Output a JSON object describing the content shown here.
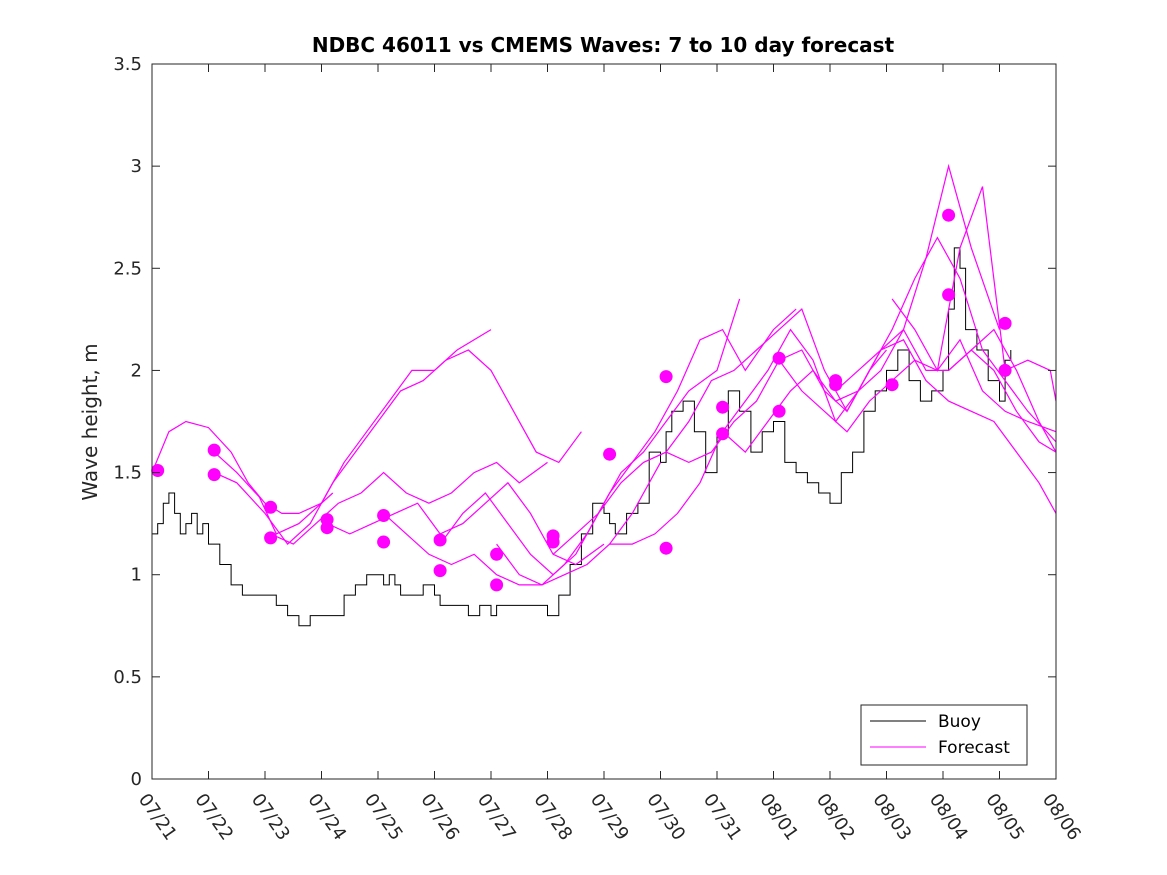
{
  "chart_data": {
    "type": "line",
    "title": "NDBC 46011 vs CMEMS Waves: 7 to 10 day forecast",
    "ylabel": "Wave height, m",
    "xlabel": "",
    "x_range_days": [
      0,
      16
    ],
    "ylim": [
      0,
      3.5
    ],
    "yticks": [
      0,
      0.5,
      1,
      1.5,
      2,
      2.5,
      3,
      3.5
    ],
    "ytick_labels": [
      "0",
      "0.5",
      "1",
      "1.5",
      "2",
      "2.5",
      "3",
      "3.5"
    ],
    "xtick_labels": [
      "07/21",
      "07/22",
      "07/23",
      "07/24",
      "07/25",
      "07/26",
      "07/27",
      "07/28",
      "07/29",
      "07/30",
      "07/31",
      "08/01",
      "08/02",
      "08/03",
      "08/04",
      "08/05",
      "08/06"
    ],
    "legend": {
      "placement": "bottom-right",
      "entries": [
        "Buoy",
        "Forecast"
      ]
    },
    "colors": {
      "buoy": "#000000",
      "forecast": "#ff00ff",
      "markers": "#ff00ff"
    },
    "series": [
      {
        "name": "Buoy",
        "color": "#000000",
        "x": [
          0,
          0.1,
          0.2,
          0.3,
          0.4,
          0.5,
          0.6,
          0.7,
          0.8,
          0.9,
          1.0,
          1.2,
          1.4,
          1.6,
          1.8,
          2.0,
          2.2,
          2.4,
          2.6,
          2.8,
          3.0,
          3.2,
          3.4,
          3.6,
          3.8,
          4.0,
          4.1,
          4.2,
          4.3,
          4.4,
          4.6,
          4.8,
          5.0,
          5.1,
          5.2,
          5.4,
          5.6,
          5.8,
          6.0,
          6.1,
          6.2,
          6.4,
          6.6,
          6.8,
          7.0,
          7.2,
          7.4,
          7.6,
          7.8,
          8.0,
          8.1,
          8.2,
          8.4,
          8.6,
          8.8,
          9.0,
          9.1,
          9.2,
          9.4,
          9.6,
          9.8,
          10.0,
          10.2,
          10.4,
          10.6,
          10.8,
          11.0,
          11.2,
          11.4,
          11.6,
          11.8,
          12.0,
          12.2,
          12.4,
          12.6,
          12.8,
          13.0,
          13.2,
          13.4,
          13.6,
          13.8,
          14.0,
          14.1,
          14.2,
          14.3,
          14.4,
          14.6,
          14.8,
          15.0,
          15.1,
          15.2
        ],
        "y": [
          1.2,
          1.25,
          1.35,
          1.4,
          1.3,
          1.2,
          1.25,
          1.3,
          1.2,
          1.25,
          1.15,
          1.05,
          0.95,
          0.9,
          0.9,
          0.9,
          0.85,
          0.8,
          0.75,
          0.8,
          0.8,
          0.8,
          0.9,
          0.95,
          1.0,
          1.0,
          0.95,
          1.0,
          0.95,
          0.9,
          0.9,
          0.95,
          0.9,
          0.85,
          0.85,
          0.85,
          0.8,
          0.85,
          0.8,
          0.85,
          0.85,
          0.85,
          0.85,
          0.85,
          0.8,
          0.9,
          1.05,
          1.2,
          1.35,
          1.3,
          1.25,
          1.2,
          1.3,
          1.35,
          1.6,
          1.55,
          1.7,
          1.8,
          1.85,
          1.7,
          1.5,
          1.7,
          1.9,
          1.8,
          1.6,
          1.7,
          1.75,
          1.55,
          1.5,
          1.45,
          1.4,
          1.35,
          1.5,
          1.6,
          1.8,
          1.9,
          2.0,
          2.1,
          1.95,
          1.85,
          1.9,
          2.0,
          2.3,
          2.6,
          2.5,
          2.2,
          2.1,
          1.95,
          1.85,
          2.05,
          2.1
        ]
      },
      {
        "name": "Forecast",
        "color": "#ff00ff",
        "segments": [
          {
            "x": [
              0,
              0.3,
              0.6,
              1.0,
              1.4,
              1.7,
              2.0,
              2.3,
              2.6,
              3.0,
              3.2
            ],
            "y": [
              1.5,
              1.7,
              1.75,
              1.72,
              1.6,
              1.45,
              1.35,
              1.3,
              1.3,
              1.35,
              1.4
            ]
          },
          {
            "x": [
              1.1,
              1.5,
              1.9,
              2.2,
              2.6,
              3.0,
              3.4,
              3.8,
              4.2,
              4.6,
              5.0,
              5.4,
              6.0
            ],
            "y": [
              1.6,
              1.5,
              1.38,
              1.2,
              1.25,
              1.35,
              1.55,
              1.7,
              1.85,
              2.0,
              2.0,
              2.1,
              2.2
            ]
          },
          {
            "x": [
              1.1,
              1.5,
              2.0,
              2.4,
              2.8,
              3.2,
              3.6,
              4.0,
              4.4,
              4.8,
              5.2,
              5.6,
              6.0,
              6.4,
              6.8,
              7.2,
              7.6
            ],
            "y": [
              1.5,
              1.45,
              1.3,
              1.15,
              1.25,
              1.45,
              1.6,
              1.75,
              1.9,
              1.95,
              2.05,
              2.1,
              2.0,
              1.8,
              1.6,
              1.55,
              1.7
            ]
          },
          {
            "x": [
              2.1,
              2.5,
              2.9,
              3.3,
              3.7,
              4.1,
              4.5,
              4.9,
              5.3,
              5.7,
              6.1,
              6.5,
              7.0
            ],
            "y": [
              1.2,
              1.15,
              1.25,
              1.35,
              1.4,
              1.5,
              1.4,
              1.35,
              1.4,
              1.5,
              1.55,
              1.45,
              1.55
            ]
          },
          {
            "x": [
              3.1,
              3.5,
              3.9,
              4.3,
              4.7,
              5.1,
              5.5,
              5.9,
              6.3,
              6.7,
              7.1,
              7.5,
              8.0
            ],
            "y": [
              1.25,
              1.2,
              1.25,
              1.3,
              1.35,
              1.2,
              1.25,
              1.35,
              1.45,
              1.3,
              1.1,
              1.05,
              1.15
            ]
          },
          {
            "x": [
              4.1,
              4.5,
              4.9,
              5.3,
              5.7,
              6.1,
              6.5,
              6.9,
              7.3,
              7.7,
              8.1,
              8.5,
              9.0
            ],
            "y": [
              1.3,
              1.2,
              1.1,
              1.05,
              1.1,
              1.0,
              0.95,
              0.95,
              1.0,
              1.05,
              1.15,
              1.3,
              1.55
            ]
          },
          {
            "x": [
              5.1,
              5.5,
              5.9,
              6.3,
              6.7,
              7.1,
              7.5,
              7.9,
              8.3,
              8.7,
              9.1,
              9.5,
              10.0,
              10.4
            ],
            "y": [
              1.15,
              1.3,
              1.4,
              1.25,
              1.1,
              1.0,
              1.1,
              1.3,
              1.5,
              1.6,
              1.75,
              1.9,
              2.0,
              2.35
            ]
          },
          {
            "x": [
              6.1,
              6.5,
              6.9,
              7.3,
              7.7,
              8.1,
              8.5,
              8.9,
              9.3,
              9.7,
              10.1,
              10.5,
              11.0,
              11.4
            ],
            "y": [
              1.15,
              1.0,
              0.95,
              1.05,
              1.2,
              1.4,
              1.55,
              1.7,
              1.9,
              2.15,
              2.2,
              2.0,
              2.2,
              2.3
            ]
          },
          {
            "x": [
              7.1,
              7.5,
              7.9,
              8.3,
              8.7,
              9.1,
              9.5,
              9.9,
              10.3,
              10.7,
              11.1,
              11.5,
              11.9,
              12.3,
              12.7,
              13.0
            ],
            "y": [
              1.1,
              1.2,
              1.3,
              1.45,
              1.55,
              1.6,
              1.75,
              1.95,
              2.0,
              2.1,
              2.2,
              2.3,
              2.0,
              1.8,
              2.0,
              2.1
            ]
          },
          {
            "x": [
              8.1,
              8.5,
              8.9,
              9.3,
              9.7,
              10.1,
              10.5,
              10.9,
              11.3,
              11.7,
              12.1,
              12.5,
              12.9,
              13.3,
              13.7,
              14.1,
              14.5,
              15.0
            ],
            "y": [
              1.15,
              1.15,
              1.2,
              1.3,
              1.45,
              1.7,
              1.85,
              2.0,
              2.2,
              2.05,
              1.75,
              1.9,
              2.0,
              2.2,
              2.55,
              3.0,
              2.6,
              2.2
            ]
          },
          {
            "x": [
              9.1,
              9.5,
              9.9,
              10.3,
              10.7,
              11.1,
              11.5,
              11.9,
              12.3,
              12.7,
              13.1,
              13.5,
              13.9,
              14.3,
              14.7,
              15.1,
              15.5,
              16.0
            ],
            "y": [
              1.6,
              1.55,
              1.6,
              1.75,
              1.85,
              2.05,
              2.1,
              1.9,
              1.8,
              2.0,
              2.2,
              2.45,
              2.65,
              2.45,
              2.1,
              1.95,
              1.8,
              1.65
            ]
          },
          {
            "x": [
              10.1,
              10.5,
              10.9,
              11.3,
              11.7,
              12.1,
              12.5,
              12.9,
              13.3,
              13.7,
              14.1,
              14.5,
              14.9,
              15.3,
              15.7,
              16.0
            ],
            "y": [
              1.7,
              1.6,
              1.75,
              1.9,
              2.0,
              1.85,
              1.9,
              2.1,
              2.2,
              2.0,
              2.0,
              2.1,
              2.0,
              1.8,
              1.65,
              1.6
            ]
          },
          {
            "x": [
              11.1,
              11.5,
              11.9,
              12.3,
              12.7,
              13.1,
              13.5,
              13.9,
              14.3,
              14.7,
              15.1,
              15.5,
              16.0
            ],
            "y": [
              2.05,
              1.9,
              1.8,
              1.7,
              1.85,
              1.95,
              2.05,
              2.0,
              2.15,
              1.9,
              1.8,
              1.75,
              1.7
            ]
          },
          {
            "x": [
              12.1,
              12.5,
              12.9,
              13.3,
              13.7,
              14.1,
              14.5,
              14.9,
              15.3,
              15.7,
              16.0
            ],
            "y": [
              1.9,
              2.0,
              2.1,
              2.15,
              1.95,
              1.85,
              1.8,
              1.75,
              1.6,
              1.45,
              1.3
            ]
          },
          {
            "x": [
              13.1,
              13.5,
              13.9,
              14.3,
              14.7,
              15.1,
              15.5,
              15.9,
              16.0
            ],
            "y": [
              2.35,
              2.2,
              2.0,
              2.6,
              2.9,
              2.0,
              2.05,
              2.0,
              1.85
            ]
          },
          {
            "x": [
              14.1,
              14.5,
              14.9,
              15.3,
              15.7,
              16.0
            ],
            "y": [
              2.0,
              2.1,
              2.2,
              2.0,
              1.75,
              1.6
            ]
          }
        ]
      },
      {
        "name": "",
        "type": "scatter",
        "color": "#ff00ff",
        "x": [
          0.1,
          1.1,
          1.1,
          2.1,
          2.1,
          3.1,
          3.1,
          4.1,
          4.1,
          5.1,
          5.1,
          6.1,
          6.1,
          7.1,
          7.1,
          8.1,
          9.1,
          9.1,
          10.1,
          10.1,
          11.1,
          11.1,
          12.1,
          12.1,
          13.1,
          14.1,
          14.1,
          15.1,
          15.1
        ],
        "y": [
          1.51,
          1.61,
          1.49,
          1.33,
          1.18,
          1.27,
          1.23,
          1.29,
          1.16,
          1.17,
          1.02,
          1.1,
          0.95,
          1.19,
          1.16,
          1.59,
          1.13,
          1.97,
          1.69,
          1.82,
          1.8,
          2.06,
          1.93,
          1.95,
          1.93,
          2.37,
          2.76,
          2.0,
          2.23
        ]
      }
    ]
  }
}
